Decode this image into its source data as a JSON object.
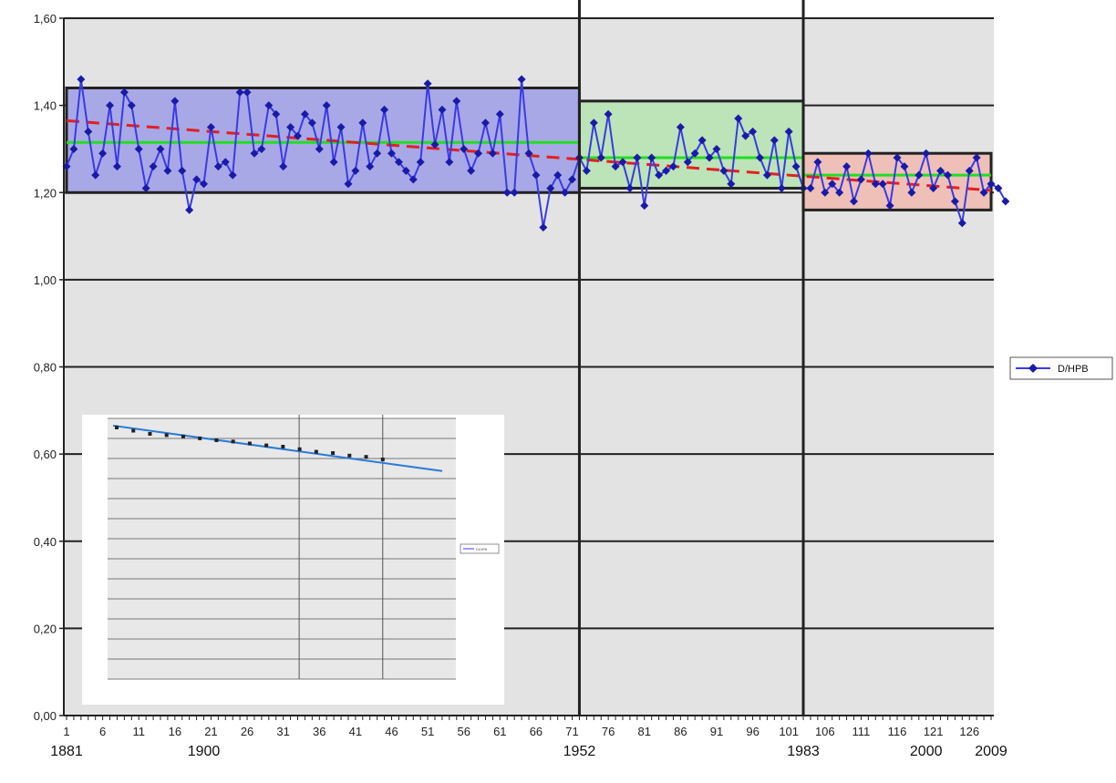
{
  "chart_data": {
    "type": "line",
    "title": "",
    "xlabel": "",
    "ylabel": "",
    "ylim": [
      0,
      1.6
    ],
    "yticks": [
      "0,00",
      "0,20",
      "0,40",
      "0,60",
      "0,80",
      "1,00",
      "1,20",
      "1,40",
      "1,60"
    ],
    "xticks": [
      "1",
      "6",
      "11",
      "16",
      "21",
      "26",
      "31",
      "36",
      "41",
      "46",
      "51",
      "56",
      "61",
      "66",
      "71",
      "76",
      "81",
      "86",
      "91",
      "96",
      "101",
      "106",
      "111",
      "116",
      "121",
      "126"
    ],
    "year_labels": [
      {
        "year": "1881",
        "x": 1
      },
      {
        "year": "1900",
        "x": 20
      },
      {
        "year": "1952",
        "x": 72
      },
      {
        "year": "1983",
        "x": 103
      },
      {
        "year": "2000",
        "x": 120
      },
      {
        "year": "2009",
        "x": 129
      }
    ],
    "grid": true,
    "legend_position": "right",
    "series": [
      {
        "name": "D/HPB",
        "color": "#1a1aa8",
        "x_start": 1,
        "values": [
          1.26,
          1.3,
          1.46,
          1.34,
          1.24,
          1.29,
          1.4,
          1.26,
          1.43,
          1.4,
          1.3,
          1.21,
          1.26,
          1.3,
          1.25,
          1.41,
          1.25,
          1.16,
          1.23,
          1.22,
          1.35,
          1.26,
          1.27,
          1.24,
          1.43,
          1.43,
          1.29,
          1.3,
          1.4,
          1.38,
          1.26,
          1.35,
          1.33,
          1.38,
          1.36,
          1.3,
          1.4,
          1.27,
          1.35,
          1.22,
          1.25,
          1.36,
          1.26,
          1.29,
          1.39,
          1.29,
          1.27,
          1.25,
          1.23,
          1.27,
          1.45,
          1.31,
          1.39,
          1.27,
          1.41,
          1.3,
          1.25,
          1.29,
          1.36,
          1.29,
          1.38,
          1.2,
          1.2,
          1.46,
          1.29,
          1.24,
          1.12,
          1.21,
          1.24,
          1.2,
          1.23,
          1.28,
          1.25,
          1.36,
          1.28,
          1.38,
          1.26,
          1.27,
          1.21,
          1.28,
          1.17,
          1.28,
          1.24,
          1.25,
          1.26,
          1.35,
          1.27,
          1.29,
          1.32,
          1.28,
          1.3,
          1.25,
          1.22,
          1.37,
          1.33,
          1.34,
          1.28,
          1.24,
          1.32,
          1.21,
          1.34,
          1.26,
          1.21,
          1.21,
          1.27,
          1.2,
          1.22,
          1.2,
          1.26,
          1.18,
          1.23,
          1.29,
          1.22,
          1.22,
          1.17,
          1.28,
          1.26,
          1.2,
          1.24,
          1.29,
          1.21,
          1.25,
          1.24,
          1.18,
          1.13,
          1.25,
          1.28,
          1.2,
          1.22,
          1.21,
          1.18
        ]
      }
    ],
    "periods": [
      {
        "x_start": 1,
        "x_end": 72,
        "y_min": 1.2,
        "y_max": 1.44,
        "mean": 1.315,
        "fill": "#a8a8e6"
      },
      {
        "x_start": 72,
        "x_end": 103,
        "y_min": 1.21,
        "y_max": 1.41,
        "mean": 1.28,
        "fill": "#bde3b8"
      },
      {
        "x_start": 103,
        "x_end": 129,
        "y_min": 1.16,
        "y_max": 1.29,
        "mean": 1.24,
        "fill": "#eec0b8"
      }
    ],
    "period_dividers": [
      72,
      103
    ],
    "trend": {
      "color": "#e02020",
      "x_start": 1,
      "y_start": 1.365,
      "x_end": 129,
      "y_end": 1.205
    },
    "mean_line_color": "#22dd22",
    "inset": {
      "legend_text": "D/HPB",
      "points": [
        1.3,
        1.295,
        1.29,
        1.288,
        1.286,
        1.283,
        1.28,
        1.278,
        1.275,
        1.272,
        1.27,
        1.266,
        1.262,
        1.26,
        1.256,
        1.254,
        1.25
      ],
      "trend": [
        1.3,
        1.236
      ]
    }
  }
}
